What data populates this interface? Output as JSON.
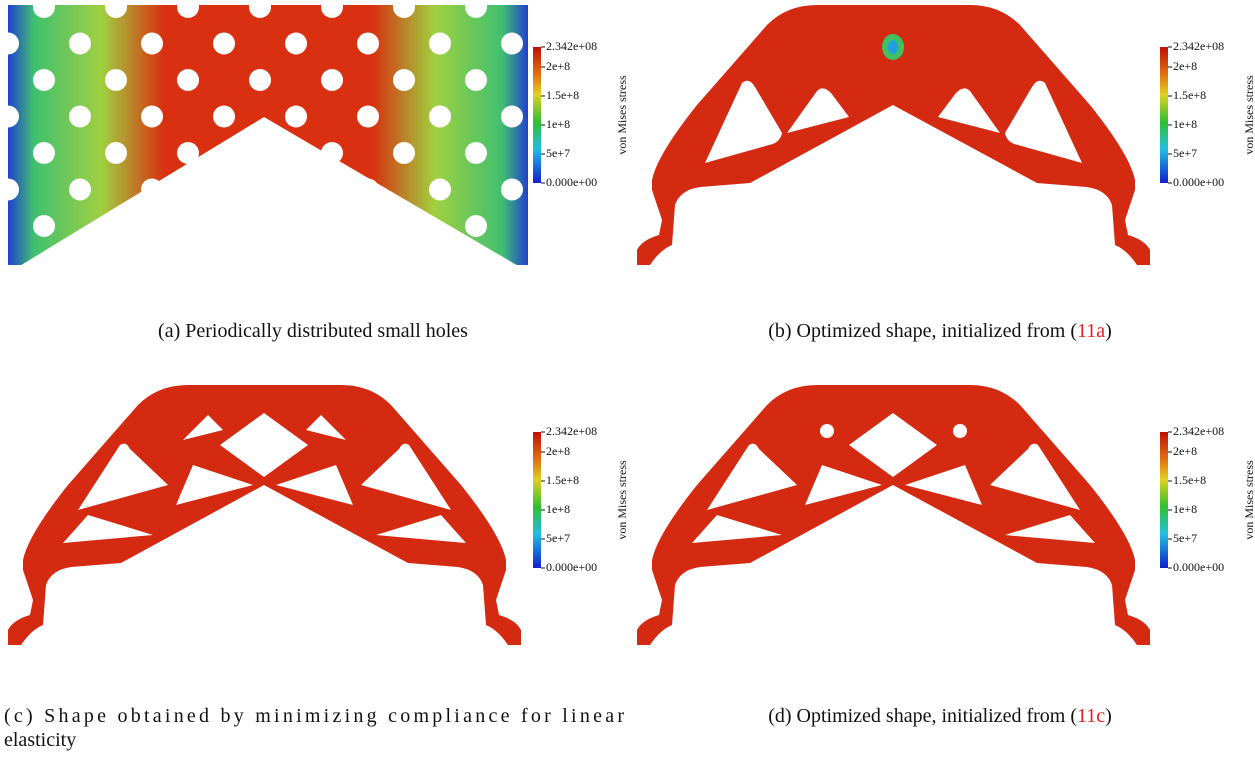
{
  "panels": [
    {
      "caption": {
        "text": "(a) Periodically distributed small holes"
      },
      "colorbar": {
        "label": "von Mises stress",
        "ticks": [
          "2.342e+08",
          "2e+8",
          "1.5e+8",
          "1e+8",
          "5e+7",
          "0.000e+00"
        ]
      }
    },
    {
      "caption": {
        "text": "(b) Optimized shape, initialized from (",
        "ref": "11a",
        "close": ")"
      },
      "colorbar": {
        "label": "von Mises stress",
        "ticks": [
          "2.342e+08",
          "2e+8",
          "1.5e+8",
          "1e+8",
          "5e+7",
          "0.000e+00"
        ]
      }
    },
    {
      "caption": {
        "lines": [
          "(c) Shape obtained by minimizing compliance for linear",
          "elasticity"
        ]
      },
      "colorbar": {
        "label": "von Mises stress",
        "ticks": [
          "2.342e+08",
          "2e+8",
          "1.5e+8",
          "1e+8",
          "5e+7",
          "0.000e+00"
        ]
      }
    },
    {
      "caption": {
        "text": "(d) Optimized shape, initialized from (",
        "ref": "11c",
        "close": ")"
      },
      "colorbar": {
        "label": "von Mises stress",
        "ticks": [
          "2.342e+08",
          "2e+8",
          "1.5e+8",
          "1e+8",
          "5e+7",
          "0.000e+00"
        ]
      }
    }
  ]
}
